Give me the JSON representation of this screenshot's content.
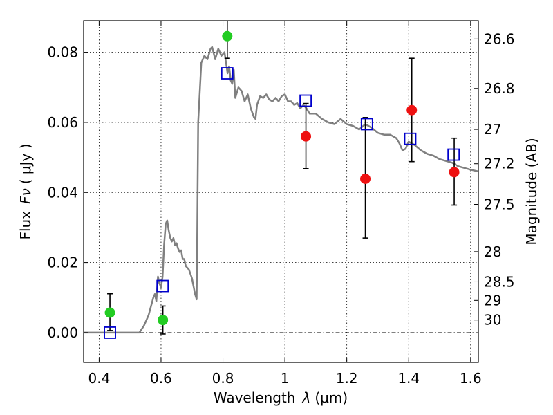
{
  "chart_data": {
    "type": "scatter",
    "xlabel_text": "Wavelength",
    "xlabel_symbol": "λ",
    "xlabel_unit": "(μm)",
    "ylabel_text": "Flux",
    "ylabel_symbol": "Fν",
    "ylabel_unit": "( μJy )",
    "y2label": "Magnitude (AB)",
    "xlim": [
      0.35,
      1.625
    ],
    "ylim": [
      -0.0085,
      0.089
    ],
    "grid": true,
    "x_ticks": [
      0.4,
      0.6,
      0.8,
      1.0,
      1.2,
      1.4,
      1.6
    ],
    "x_tick_labels": [
      "0.4",
      "0.6",
      "0.8",
      "1",
      "1.2",
      "1.4",
      "1.6"
    ],
    "y_ticks": [
      0.0,
      0.02,
      0.04,
      0.06,
      0.08
    ],
    "y_tick_labels": [
      "0.00",
      "0.02",
      "0.04",
      "0.06",
      "0.08"
    ],
    "y2_ticks": [
      {
        "label": "26.6",
        "flux": 0.0838
      },
      {
        "label": "26.8",
        "flux": 0.0697
      },
      {
        "label": "27",
        "flux": 0.058
      },
      {
        "label": "27.2",
        "flux": 0.0482
      },
      {
        "label": "27.5",
        "flux": 0.0366
      },
      {
        "label": "28",
        "flux": 0.0231
      },
      {
        "label": "28.5",
        "flux": 0.0145
      },
      {
        "label": "29",
        "flux": 0.0092
      },
      {
        "label": "30",
        "flux": 0.0036
      }
    ],
    "model_sed": {
      "color": "#808080",
      "points": [
        [
          0.35,
          0.0
        ],
        [
          0.53,
          0.0
        ],
        [
          0.545,
          0.002
        ],
        [
          0.56,
          0.005
        ],
        [
          0.575,
          0.01
        ],
        [
          0.58,
          0.011
        ],
        [
          0.585,
          0.009
        ],
        [
          0.59,
          0.016
        ],
        [
          0.595,
          0.014
        ],
        [
          0.6,
          0.013
        ],
        [
          0.605,
          0.016
        ],
        [
          0.61,
          0.025
        ],
        [
          0.615,
          0.031
        ],
        [
          0.62,
          0.032
        ],
        [
          0.625,
          0.029
        ],
        [
          0.63,
          0.027
        ],
        [
          0.635,
          0.026
        ],
        [
          0.64,
          0.027
        ],
        [
          0.645,
          0.025
        ],
        [
          0.65,
          0.0255
        ],
        [
          0.655,
          0.024
        ],
        [
          0.66,
          0.023
        ],
        [
          0.665,
          0.0235
        ],
        [
          0.67,
          0.021
        ],
        [
          0.675,
          0.021
        ],
        [
          0.68,
          0.019
        ],
        [
          0.69,
          0.018
        ],
        [
          0.7,
          0.0155
        ],
        [
          0.71,
          0.011
        ],
        [
          0.715,
          0.0095
        ],
        [
          0.72,
          0.06
        ],
        [
          0.73,
          0.077
        ],
        [
          0.74,
          0.079
        ],
        [
          0.75,
          0.078
        ],
        [
          0.76,
          0.081
        ],
        [
          0.765,
          0.0815
        ],
        [
          0.775,
          0.078
        ],
        [
          0.785,
          0.081
        ],
        [
          0.795,
          0.079
        ],
        [
          0.805,
          0.08
        ],
        [
          0.815,
          0.074
        ],
        [
          0.82,
          0.076
        ],
        [
          0.825,
          0.072
        ],
        [
          0.83,
          0.071
        ],
        [
          0.835,
          0.075
        ],
        [
          0.84,
          0.067
        ],
        [
          0.85,
          0.07
        ],
        [
          0.86,
          0.069
        ],
        [
          0.87,
          0.066
        ],
        [
          0.88,
          0.068
        ],
        [
          0.89,
          0.064
        ],
        [
          0.9,
          0.0615
        ],
        [
          0.905,
          0.061
        ],
        [
          0.91,
          0.065
        ],
        [
          0.92,
          0.0675
        ],
        [
          0.93,
          0.067
        ],
        [
          0.94,
          0.068
        ],
        [
          0.95,
          0.0665
        ],
        [
          0.96,
          0.066
        ],
        [
          0.97,
          0.067
        ],
        [
          0.98,
          0.066
        ],
        [
          0.99,
          0.0675
        ],
        [
          1.0,
          0.068
        ],
        [
          1.01,
          0.066
        ],
        [
          1.02,
          0.066
        ],
        [
          1.03,
          0.065
        ],
        [
          1.04,
          0.0655
        ],
        [
          1.05,
          0.064
        ],
        [
          1.06,
          0.065
        ],
        [
          1.07,
          0.064
        ],
        [
          1.08,
          0.0625
        ],
        [
          1.1,
          0.0625
        ],
        [
          1.12,
          0.061
        ],
        [
          1.14,
          0.06
        ],
        [
          1.16,
          0.0595
        ],
        [
          1.18,
          0.061
        ],
        [
          1.2,
          0.0595
        ],
        [
          1.22,
          0.059
        ],
        [
          1.24,
          0.058
        ],
        [
          1.26,
          0.0595
        ],
        [
          1.28,
          0.0585
        ],
        [
          1.3,
          0.057
        ],
        [
          1.32,
          0.0565
        ],
        [
          1.34,
          0.0565
        ],
        [
          1.36,
          0.0555
        ],
        [
          1.37,
          0.054
        ],
        [
          1.38,
          0.052
        ],
        [
          1.39,
          0.0525
        ],
        [
          1.4,
          0.0545
        ],
        [
          1.42,
          0.0535
        ],
        [
          1.44,
          0.052
        ],
        [
          1.46,
          0.051
        ],
        [
          1.48,
          0.0505
        ],
        [
          1.5,
          0.0495
        ],
        [
          1.52,
          0.049
        ],
        [
          1.54,
          0.0485
        ],
        [
          1.56,
          0.0475
        ],
        [
          1.58,
          0.047
        ],
        [
          1.6,
          0.0465
        ],
        [
          1.625,
          0.046
        ]
      ]
    },
    "series": [
      {
        "marker": "open-square",
        "color": "#0000cc",
        "points": [
          {
            "x": 0.435,
            "y": 0.0
          },
          {
            "x": 0.605,
            "y": 0.0133
          },
          {
            "x": 0.814,
            "y": 0.074
          },
          {
            "x": 1.067,
            "y": 0.0662
          },
          {
            "x": 1.265,
            "y": 0.0595
          },
          {
            "x": 1.405,
            "y": 0.0553
          },
          {
            "x": 1.545,
            "y": 0.0508
          }
        ]
      },
      {
        "marker": "filled-circle",
        "color": "#22cc22",
        "points": [
          {
            "x": 0.435,
            "y": 0.0057,
            "err_low": 0.0051,
            "err_high": 0.0054
          },
          {
            "x": 0.606,
            "y": 0.0036,
            "err_low": 0.004,
            "err_high": 0.004
          },
          {
            "x": 0.814,
            "y": 0.0846,
            "err_low": 0.0063,
            "err_high": 0.0074
          }
        ]
      },
      {
        "marker": "filled-circle",
        "color": "#ee1111",
        "points": [
          {
            "x": 1.068,
            "y": 0.056,
            "err_low": 0.0092,
            "err_high": 0.0094
          },
          {
            "x": 1.26,
            "y": 0.0439,
            "err_low": 0.0169,
            "err_high": 0.0175
          },
          {
            "x": 1.41,
            "y": 0.0635,
            "err_low": 0.0147,
            "err_high": 0.0148
          },
          {
            "x": 1.547,
            "y": 0.0458,
            "err_low": 0.0094,
            "err_high": 0.0097
          }
        ]
      }
    ]
  }
}
